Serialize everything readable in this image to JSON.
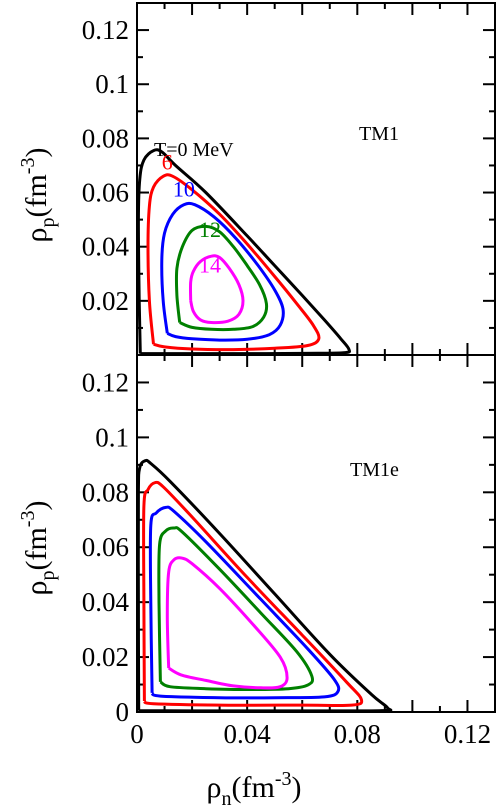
{
  "chart_data": [
    {
      "type": "line",
      "panel": "top",
      "model_label": "TM1",
      "annotation": "T=0 MeV",
      "xlabel": "",
      "ylabel_symbol": "ρ",
      "ylabel_sub": "p",
      "ylabel_unit_open": "(fm",
      "ylabel_unit_exp": "-3",
      "ylabel_unit_close": ")",
      "xlim": [
        0,
        0.13
      ],
      "ylim": [
        0,
        0.13
      ],
      "xticks": [],
      "yticks": [
        {
          "value": 0.02,
          "label": "0.02"
        },
        {
          "value": 0.04,
          "label": "0.04"
        },
        {
          "value": 0.06,
          "label": "0.06"
        },
        {
          "value": 0.08,
          "label": "0.08"
        },
        {
          "value": 0.1,
          "label": "0.1"
        },
        {
          "value": 0.12,
          "label": "0.12"
        }
      ],
      "series": [
        {
          "label": "",
          "color": "#000000",
          "points": [
            [
              0.0012,
              0.0005
            ],
            [
              0.0008,
              0.02
            ],
            [
              0.0005,
              0.05
            ],
            [
              0.001,
              0.065
            ],
            [
              0.0025,
              0.072
            ],
            [
              0.006,
              0.0755
            ],
            [
              0.009,
              0.075
            ],
            [
              0.014,
              0.07
            ],
            [
              0.025,
              0.06
            ],
            [
              0.04,
              0.044
            ],
            [
              0.05,
              0.033
            ],
            [
              0.06,
              0.022
            ],
            [
              0.068,
              0.013
            ],
            [
              0.074,
              0.006
            ],
            [
              0.077,
              0.002
            ],
            [
              0.075,
              0.0008
            ],
            [
              0.06,
              0.0006
            ],
            [
              0.04,
              0.0005
            ],
            [
              0.02,
              0.0005
            ],
            [
              0.0012,
              0.0005
            ]
          ]
        },
        {
          "label": "6",
          "label_pos": [
            0.011,
            0.0685
          ],
          "color": "#ff0000",
          "points": [
            [
              0.006,
              0.004
            ],
            [
              0.0045,
              0.02
            ],
            [
              0.004,
              0.04
            ],
            [
              0.0045,
              0.055
            ],
            [
              0.006,
              0.062
            ],
            [
              0.0095,
              0.066
            ],
            [
              0.013,
              0.066
            ],
            [
              0.02,
              0.061
            ],
            [
              0.03,
              0.052
            ],
            [
              0.04,
              0.041
            ],
            [
              0.05,
              0.029
            ],
            [
              0.058,
              0.019
            ],
            [
              0.064,
              0.011
            ],
            [
              0.066,
              0.006
            ],
            [
              0.062,
              0.0035
            ],
            [
              0.05,
              0.0025
            ],
            [
              0.035,
              0.002
            ],
            [
              0.02,
              0.0022
            ],
            [
              0.01,
              0.003
            ],
            [
              0.006,
              0.004
            ]
          ]
        },
        {
          "label": "10",
          "label_pos": [
            0.017,
            0.0585
          ],
          "color": "#0000ff",
          "points": [
            [
              0.011,
              0.008
            ],
            [
              0.0095,
              0.02
            ],
            [
              0.009,
              0.035
            ],
            [
              0.01,
              0.045
            ],
            [
              0.013,
              0.052
            ],
            [
              0.017,
              0.0555
            ],
            [
              0.021,
              0.0555
            ],
            [
              0.028,
              0.051
            ],
            [
              0.036,
              0.043
            ],
            [
              0.044,
              0.033
            ],
            [
              0.05,
              0.024
            ],
            [
              0.053,
              0.017
            ],
            [
              0.052,
              0.011
            ],
            [
              0.048,
              0.0075
            ],
            [
              0.04,
              0.0058
            ],
            [
              0.03,
              0.0055
            ],
            [
              0.02,
              0.006
            ],
            [
              0.014,
              0.0068
            ],
            [
              0.011,
              0.008
            ]
          ]
        },
        {
          "label": "12",
          "label_pos": [
            0.0265,
            0.0436
          ],
          "color": "#008000",
          "points": [
            [
              0.0155,
              0.012
            ],
            [
              0.0145,
              0.022
            ],
            [
              0.0145,
              0.032
            ],
            [
              0.0165,
              0.04
            ],
            [
              0.02,
              0.046
            ],
            [
              0.025,
              0.0475
            ],
            [
              0.03,
              0.0455
            ],
            [
              0.035,
              0.04
            ],
            [
              0.04,
              0.033
            ],
            [
              0.0445,
              0.026
            ],
            [
              0.047,
              0.019
            ],
            [
              0.046,
              0.014
            ],
            [
              0.042,
              0.0105
            ],
            [
              0.035,
              0.0095
            ],
            [
              0.027,
              0.0095
            ],
            [
              0.02,
              0.0102
            ],
            [
              0.0155,
              0.012
            ]
          ]
        },
        {
          "label": "14",
          "label_pos": [
            0.0265,
            0.0304
          ],
          "color": "#ff00ff",
          "points": [
            [
              0.0195,
              0.02
            ],
            [
              0.0195,
              0.027
            ],
            [
              0.0205,
              0.031
            ],
            [
              0.023,
              0.0345
            ],
            [
              0.027,
              0.0365
            ],
            [
              0.03,
              0.036
            ],
            [
              0.0335,
              0.032
            ],
            [
              0.037,
              0.026
            ],
            [
              0.0385,
              0.02
            ],
            [
              0.037,
              0.015
            ],
            [
              0.033,
              0.0125
            ],
            [
              0.027,
              0.012
            ],
            [
              0.023,
              0.013
            ],
            [
              0.0205,
              0.016
            ],
            [
              0.0195,
              0.02
            ]
          ]
        }
      ]
    },
    {
      "type": "line",
      "panel": "bottom",
      "model_label": "TM1e",
      "xlabel_symbol": "ρ",
      "xlabel_sub": "n",
      "xlabel_unit_open": "(fm",
      "xlabel_unit_exp": "-3",
      "xlabel_unit_close": ")",
      "ylabel_symbol": "ρ",
      "ylabel_sub": "p",
      "ylabel_unit_open": "(fm",
      "ylabel_unit_exp": "-3",
      "ylabel_unit_close": ")",
      "xlim": [
        0,
        0.13
      ],
      "ylim": [
        0,
        0.13
      ],
      "xticks": [
        {
          "value": 0,
          "label": "0"
        },
        {
          "value": 0.04,
          "label": "0.04"
        },
        {
          "value": 0.08,
          "label": "0.08"
        },
        {
          "value": 0.12,
          "label": "0.12"
        }
      ],
      "yticks": [
        {
          "value": 0,
          "label": "0"
        },
        {
          "value": 0.02,
          "label": "0.02"
        },
        {
          "value": 0.04,
          "label": "0.04"
        },
        {
          "value": 0.06,
          "label": "0.06"
        },
        {
          "value": 0.08,
          "label": "0.08"
        },
        {
          "value": 0.1,
          "label": "0.1"
        },
        {
          "value": 0.12,
          "label": "0.12"
        }
      ],
      "series": [
        {
          "label": "",
          "color": "#000000",
          "points": [
            [
              0.0006,
              0.0005
            ],
            [
              0.0005,
              0.04
            ],
            [
              0.0005,
              0.08
            ],
            [
              0.001,
              0.089
            ],
            [
              0.003,
              0.0915
            ],
            [
              0.005,
              0.0905
            ],
            [
              0.012,
              0.084
            ],
            [
              0.03,
              0.065
            ],
            [
              0.05,
              0.043
            ],
            [
              0.07,
              0.021
            ],
            [
              0.085,
              0.0065
            ],
            [
              0.091,
              0.0015
            ],
            [
              0.089,
              0.0005
            ],
            [
              0.06,
              0.0004
            ],
            [
              0.03,
              0.0004
            ],
            [
              0.0006,
              0.0005
            ]
          ]
        },
        {
          "label": "",
          "color": "#ff0000",
          "points": [
            [
              0.0027,
              0.004
            ],
            [
              0.0025,
              0.04
            ],
            [
              0.0025,
              0.075
            ],
            [
              0.004,
              0.081
            ],
            [
              0.0065,
              0.0835
            ],
            [
              0.0095,
              0.082
            ],
            [
              0.02,
              0.071
            ],
            [
              0.04,
              0.049
            ],
            [
              0.06,
              0.028
            ],
            [
              0.076,
              0.011
            ],
            [
              0.0815,
              0.0045
            ],
            [
              0.078,
              0.0025
            ],
            [
              0.06,
              0.0025
            ],
            [
              0.03,
              0.0025
            ],
            [
              0.006,
              0.003
            ],
            [
              0.0027,
              0.004
            ]
          ]
        },
        {
          "label": "",
          "color": "#0000ff",
          "points": [
            [
              0.0055,
              0.007
            ],
            [
              0.005,
              0.04
            ],
            [
              0.005,
              0.068
            ],
            [
              0.007,
              0.0725
            ],
            [
              0.0105,
              0.0745
            ],
            [
              0.0135,
              0.073
            ],
            [
              0.025,
              0.062
            ],
            [
              0.045,
              0.041
            ],
            [
              0.062,
              0.023
            ],
            [
              0.0715,
              0.012
            ],
            [
              0.073,
              0.0075
            ],
            [
              0.068,
              0.0055
            ],
            [
              0.05,
              0.0052
            ],
            [
              0.03,
              0.0052
            ],
            [
              0.0085,
              0.0058
            ],
            [
              0.0055,
              0.007
            ]
          ]
        },
        {
          "label": "",
          "color": "#008000",
          "points": [
            [
              0.0085,
              0.011
            ],
            [
              0.008,
              0.04
            ],
            [
              0.0082,
              0.061
            ],
            [
              0.0105,
              0.066
            ],
            [
              0.0135,
              0.067
            ],
            [
              0.0165,
              0.0655
            ],
            [
              0.03,
              0.052
            ],
            [
              0.045,
              0.036
            ],
            [
              0.058,
              0.022
            ],
            [
              0.0635,
              0.013
            ],
            [
              0.062,
              0.0098
            ],
            [
              0.055,
              0.0085
            ],
            [
              0.04,
              0.0082
            ],
            [
              0.025,
              0.0085
            ],
            [
              0.012,
              0.0092
            ],
            [
              0.0085,
              0.011
            ]
          ]
        },
        {
          "label": "",
          "color": "#ff00ff",
          "points": [
            [
              0.0115,
              0.016
            ],
            [
              0.011,
              0.035
            ],
            [
              0.0115,
              0.051
            ],
            [
              0.0135,
              0.0555
            ],
            [
              0.0165,
              0.056
            ],
            [
              0.02,
              0.054
            ],
            [
              0.03,
              0.045
            ],
            [
              0.042,
              0.032
            ],
            [
              0.052,
              0.02
            ],
            [
              0.0545,
              0.0125
            ],
            [
              0.052,
              0.0092
            ],
            [
              0.045,
              0.0088
            ],
            [
              0.035,
              0.0095
            ],
            [
              0.025,
              0.0115
            ],
            [
              0.016,
              0.0135
            ],
            [
              0.0115,
              0.016
            ]
          ]
        }
      ]
    }
  ]
}
